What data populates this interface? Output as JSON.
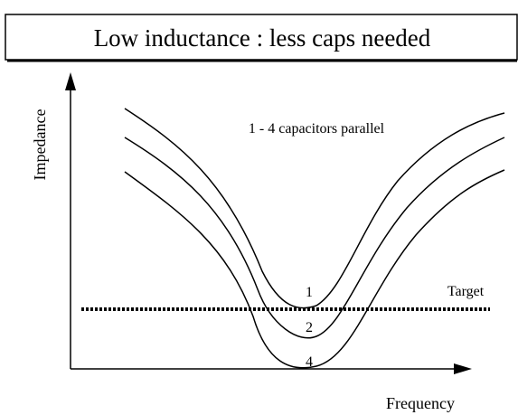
{
  "header": {
    "title": "Low inductance : less caps needed"
  },
  "axes": {
    "y_label": "Impedance",
    "x_label": "Frequency"
  },
  "annotation": "1 - 4 capacitors parallel",
  "target_label": "Target",
  "curve_labels": [
    "1",
    "2",
    "4"
  ]
}
